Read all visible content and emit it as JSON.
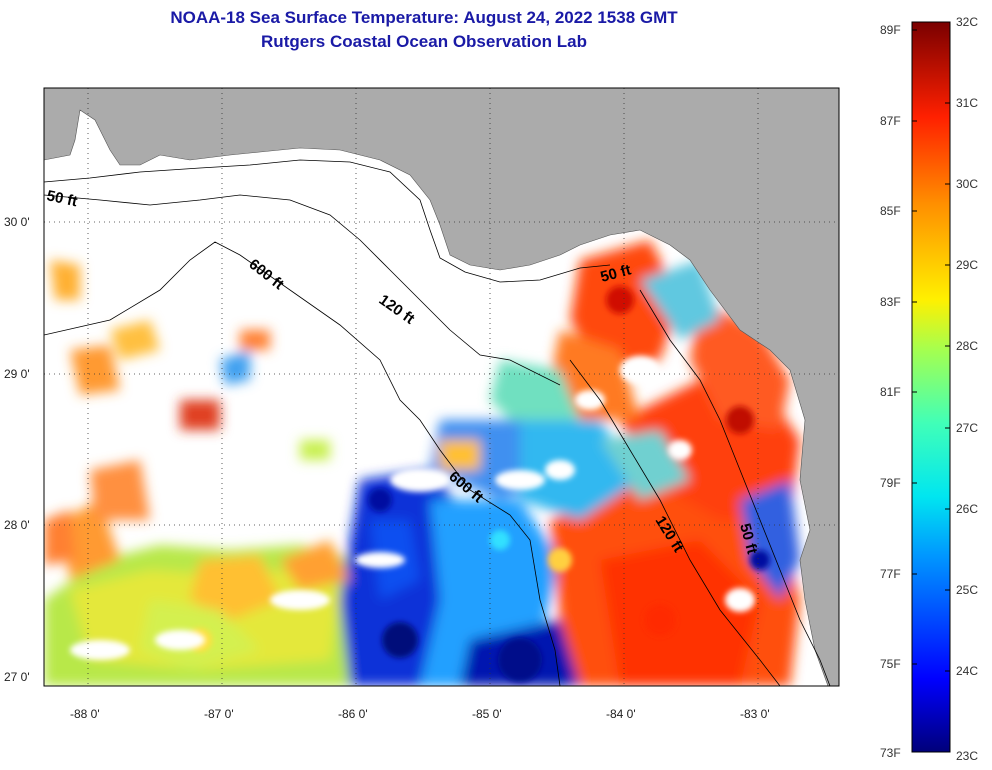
{
  "title": {
    "line1": "NOAA-18 Sea Surface Temperature:  August 24, 2022 1538 GMT",
    "line2": "Rutgers Coastal Ocean Observation Lab"
  },
  "axes": {
    "lat_labels": [
      "30 0'",
      "29 0'",
      "28 0'",
      "27 0'"
    ],
    "lon_labels": [
      "-88 0'",
      "-87 0'",
      "-86 0'",
      "-85 0'",
      "-84 0'",
      "-83 0'"
    ]
  },
  "contours": {
    "c600a": "600 ft",
    "c120": "120 ft",
    "c50a": "50 ft",
    "c50b": "50 ft",
    "c600b": "600 ft",
    "c120b": "120 ft",
    "c50c": "50 ft"
  },
  "colorbar": {
    "f_labels": [
      "89F",
      "87F",
      "85F",
      "83F",
      "81F",
      "79F",
      "77F",
      "75F",
      "73F"
    ],
    "c_labels": [
      "32C",
      "31C",
      "30C",
      "29C",
      "28C",
      "27C",
      "26C",
      "25C",
      "24C",
      "23C"
    ]
  },
  "colors": {
    "land": "#ababab",
    "cloud": "#ffffff",
    "title": "#1a1aa6"
  }
}
